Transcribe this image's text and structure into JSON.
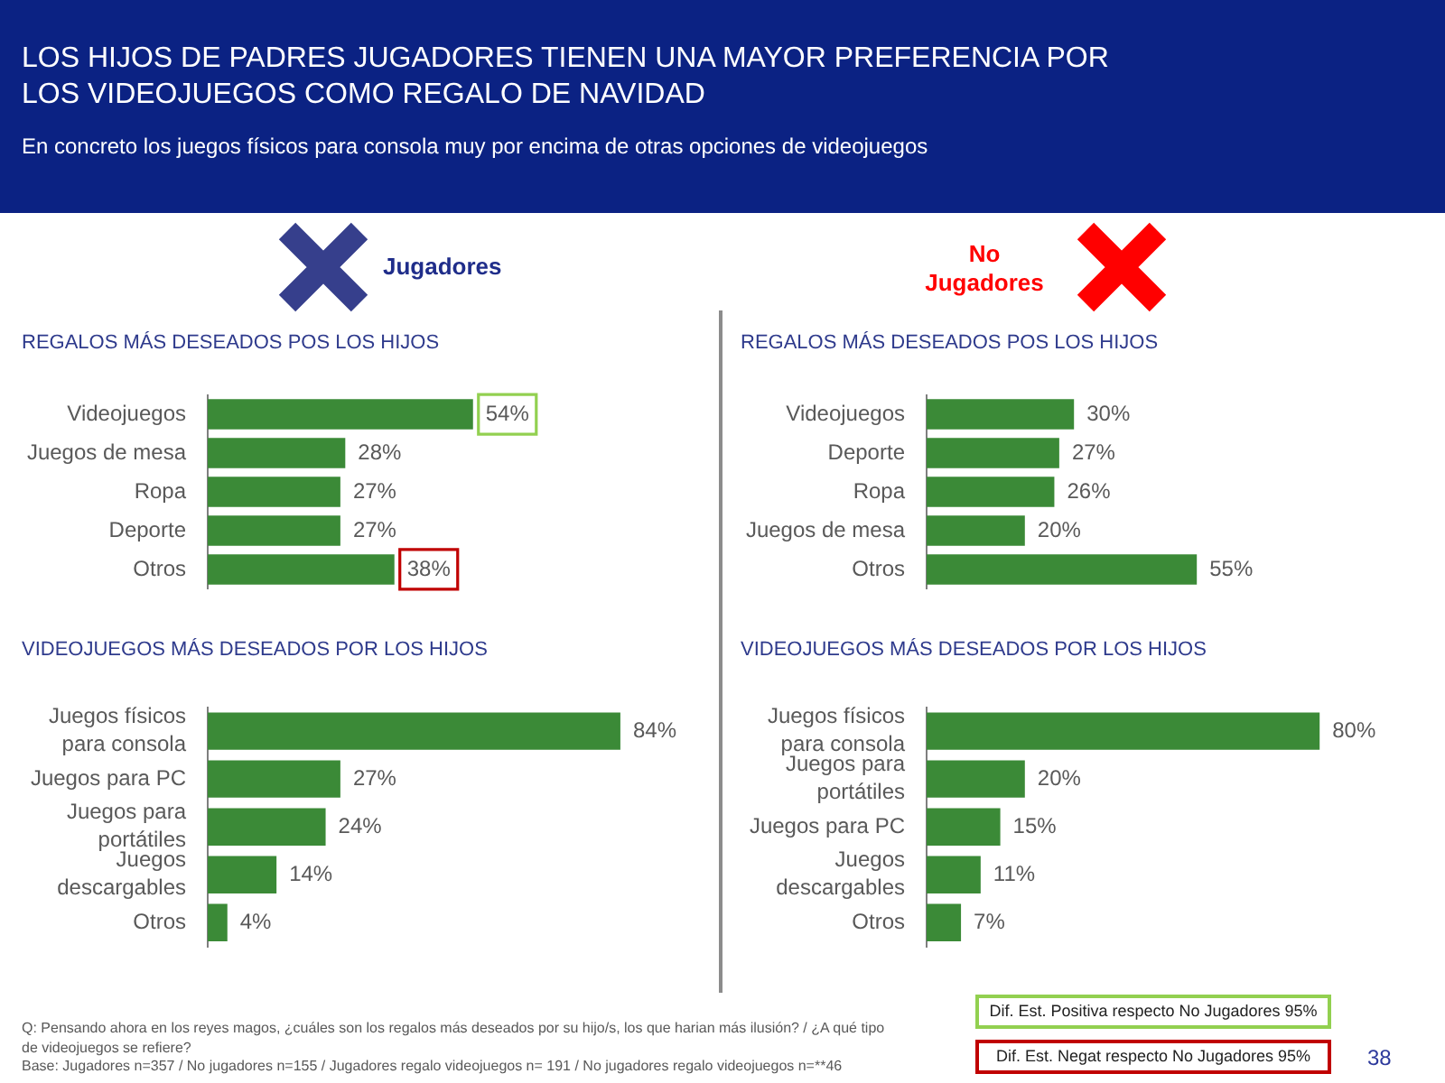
{
  "chart_data": [
    {
      "type": "bar",
      "orientation": "horizontal",
      "title": "REGALOS MÁS DESEADOS POS LOS HIJOS",
      "subtitle": "Jugadores",
      "categories": [
        "Videojuegos",
        "Juegos de mesa",
        "Ropa",
        "Deporte",
        "Otros"
      ],
      "values": [
        54,
        28,
        27,
        27,
        38
      ],
      "value_labels": [
        "54%",
        "28%",
        "27%",
        "27%",
        "38%"
      ],
      "color": "#3b8a37",
      "tick_labels": "y",
      "annotations": [
        "LOS HIJOS DE PADRES JUGADORES TIENEN UNA MAYOR PREFERENCIA POR LOS VIDEOJUEGOS COMO REGALO DE NAVIDAD",
        "En concreto los juegos físicos para consola muy por encima de otras opciones de videojuegos",
        "Dif. Est. Positiva respecto No Jugadores 95%",
        "Dif. Est. Negat respecto No Jugadores 95%",
        "Q: Pensando ahora en los reyes magos, ¿cuáles son los regalos más deseados por su hijo/s, los que harian más ilusión? / ¿A qué tipo de videojuegos se refiere?",
        "Base: Jugadores n=357 / No jugadores n=155 / Jugadores regalo videojuegos n= 191 / No jugadores regalo videojuegos n=**46",
        "38"
      ]
    },
    {
      "type": "bar",
      "orientation": "horizontal",
      "title": "REGALOS MÁS DESEADOS POS LOS HIJOS",
      "subtitle": "No Jugadores",
      "categories": [
        "Videojuegos",
        "Deporte",
        "Ropa",
        "Juegos de mesa",
        "Otros"
      ],
      "values": [
        30,
        27,
        26,
        20,
        55
      ],
      "value_labels": [
        "30%",
        "27%",
        "26%",
        "20%",
        "55%"
      ],
      "color": "#3b8a37",
      "tick_labels": "y"
    },
    {
      "type": "bar",
      "orientation": "horizontal",
      "title": "VIDEOJUEGOS MÁS DESEADOS POR LOS HIJOS",
      "categories": [
        "Juegos físicos para consola",
        "Juegos para PC",
        "Juegos para portátiles",
        "Juegos descargables",
        "Otros"
      ],
      "values": [
        84,
        27,
        24,
        14,
        4
      ],
      "value_labels": [
        "84%",
        "27%",
        "24%",
        "14%",
        "4%"
      ],
      "color": "#3b8a37",
      "tick_labels": "y"
    },
    {
      "type": "bar",
      "orientation": "horizontal",
      "title": "VIDEOJUEGOS MÁS DESEADOS POR LOS HIJOS",
      "categories": [
        "Juegos físicos para consola",
        "Juegos para portátiles",
        "Juegos para PC",
        "Juegos descargables",
        "Otros"
      ],
      "values": [
        80,
        20,
        15,
        11,
        7
      ],
      "value_labels": [
        "80%",
        "20%",
        "15%",
        "11%",
        "7%"
      ],
      "color": "#3b8a37",
      "tick_labels": "y"
    }
  ]
}
